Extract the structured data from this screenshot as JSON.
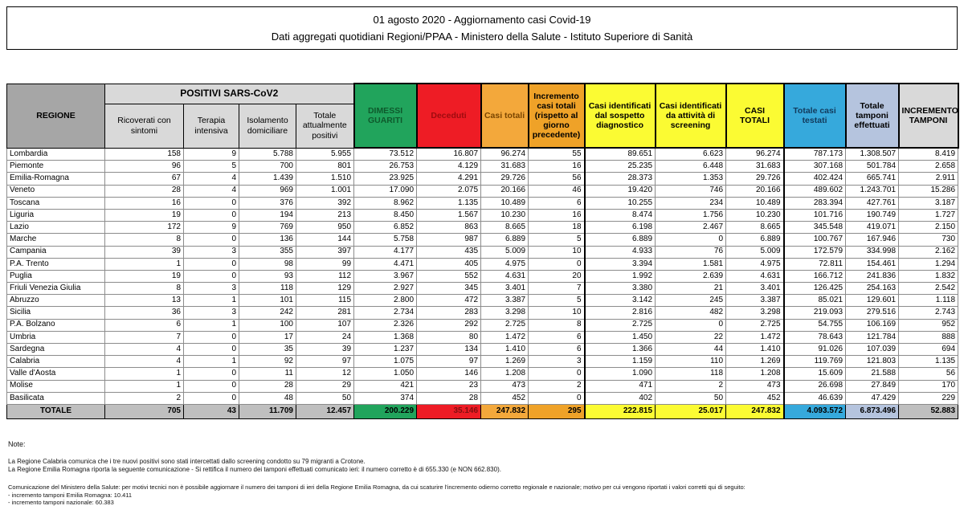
{
  "title": {
    "line1": "01 agosto 2020 - Aggiornamento casi Covid-19",
    "line2": "Dati aggregati quotidiani Regioni/PPAA - Ministero della Salute - Istituto Superiore di Sanità"
  },
  "table": {
    "header": {
      "regione": "REGIONE",
      "positivi_group": "POSITIVI SARS-CoV2",
      "sub_columns": [
        "Ricoverati con sintomi",
        "Terapia intensiva",
        "Isolamento domiciliare",
        "Totale attualmente positivi"
      ],
      "dimessi": "DIMESSI GUARITI",
      "deceduti": "Deceduti",
      "casi_totali": "Casi totali",
      "incremento_casi": "Incremento casi totali (rispetto al giorno precedente)",
      "sospetto": "Casi identificati dal sospetto diagnostico",
      "screening": "Casi identificati da attività di screening",
      "casi_totali_maiusc": "CASI TOTALI",
      "casi_testati": "Totale casi testati",
      "tamponi": "Totale tamponi effettuati",
      "incremento_tamponi": "INCREMENTO TAMPONI"
    },
    "rows": [
      {
        "regione": "Lombardia",
        "values": [
          "158",
          "9",
          "5.788",
          "5.955",
          "73.512",
          "16.807",
          "96.274",
          "55",
          "89.651",
          "6.623",
          "96.274",
          "787.173",
          "1.308.507",
          "8.419"
        ]
      },
      {
        "regione": "Piemonte",
        "values": [
          "96",
          "5",
          "700",
          "801",
          "26.753",
          "4.129",
          "31.683",
          "16",
          "25.235",
          "6.448",
          "31.683",
          "307.168",
          "501.784",
          "2.658"
        ]
      },
      {
        "regione": "Emilia-Romagna",
        "values": [
          "67",
          "4",
          "1.439",
          "1.510",
          "23.925",
          "4.291",
          "29.726",
          "56",
          "28.373",
          "1.353",
          "29.726",
          "402.424",
          "665.741",
          "2.911"
        ]
      },
      {
        "regione": "Veneto",
        "values": [
          "28",
          "4",
          "969",
          "1.001",
          "17.090",
          "2.075",
          "20.166",
          "46",
          "19.420",
          "746",
          "20.166",
          "489.602",
          "1.243.701",
          "15.286"
        ]
      },
      {
        "regione": "Toscana",
        "values": [
          "16",
          "0",
          "376",
          "392",
          "8.962",
          "1.135",
          "10.489",
          "6",
          "10.255",
          "234",
          "10.489",
          "283.394",
          "427.761",
          "3.187"
        ]
      },
      {
        "regione": "Liguria",
        "values": [
          "19",
          "0",
          "194",
          "213",
          "8.450",
          "1.567",
          "10.230",
          "16",
          "8.474",
          "1.756",
          "10.230",
          "101.716",
          "190.749",
          "1.727"
        ]
      },
      {
        "regione": "Lazio",
        "values": [
          "172",
          "9",
          "769",
          "950",
          "6.852",
          "863",
          "8.665",
          "18",
          "6.198",
          "2.467",
          "8.665",
          "345.548",
          "419.071",
          "2.150"
        ]
      },
      {
        "regione": "Marche",
        "values": [
          "8",
          "0",
          "136",
          "144",
          "5.758",
          "987",
          "6.889",
          "5",
          "6.889",
          "0",
          "6.889",
          "100.767",
          "167.946",
          "730"
        ]
      },
      {
        "regione": "Campania",
        "values": [
          "39",
          "3",
          "355",
          "397",
          "4.177",
          "435",
          "5.009",
          "10",
          "4.933",
          "76",
          "5.009",
          "172.579",
          "334.998",
          "2.162"
        ]
      },
      {
        "regione": "P.A. Trento",
        "values": [
          "1",
          "0",
          "98",
          "99",
          "4.471",
          "405",
          "4.975",
          "0",
          "3.394",
          "1.581",
          "4.975",
          "72.811",
          "154.461",
          "1.294"
        ]
      },
      {
        "regione": "Puglia",
        "values": [
          "19",
          "0",
          "93",
          "112",
          "3.967",
          "552",
          "4.631",
          "20",
          "1.992",
          "2.639",
          "4.631",
          "166.712",
          "241.836",
          "1.832"
        ]
      },
      {
        "regione": "Friuli Venezia Giulia",
        "values": [
          "8",
          "3",
          "118",
          "129",
          "2.927",
          "345",
          "3.401",
          "7",
          "3.380",
          "21",
          "3.401",
          "126.425",
          "254.163",
          "2.542"
        ]
      },
      {
        "regione": "Abruzzo",
        "values": [
          "13",
          "1",
          "101",
          "115",
          "2.800",
          "472",
          "3.387",
          "5",
          "3.142",
          "245",
          "3.387",
          "85.021",
          "129.601",
          "1.118"
        ]
      },
      {
        "regione": "Sicilia",
        "values": [
          "36",
          "3",
          "242",
          "281",
          "2.734",
          "283",
          "3.298",
          "10",
          "2.816",
          "482",
          "3.298",
          "219.093",
          "279.516",
          "2.743"
        ]
      },
      {
        "regione": "P.A. Bolzano",
        "values": [
          "6",
          "1",
          "100",
          "107",
          "2.326",
          "292",
          "2.725",
          "8",
          "2.725",
          "0",
          "2.725",
          "54.755",
          "106.169",
          "952"
        ]
      },
      {
        "regione": "Umbria",
        "values": [
          "7",
          "0",
          "17",
          "24",
          "1.368",
          "80",
          "1.472",
          "6",
          "1.450",
          "22",
          "1.472",
          "78.643",
          "121.784",
          "888"
        ]
      },
      {
        "regione": "Sardegna",
        "values": [
          "4",
          "0",
          "35",
          "39",
          "1.237",
          "134",
          "1.410",
          "6",
          "1.366",
          "44",
          "1.410",
          "91.026",
          "107.039",
          "694"
        ]
      },
      {
        "regione": "Calabria",
        "values": [
          "4",
          "1",
          "92",
          "97",
          "1.075",
          "97",
          "1.269",
          "3",
          "1.159",
          "110",
          "1.269",
          "119.769",
          "121.803",
          "1.135"
        ]
      },
      {
        "regione": "Valle d'Aosta",
        "values": [
          "1",
          "0",
          "11",
          "12",
          "1.050",
          "146",
          "1.208",
          "0",
          "1.090",
          "118",
          "1.208",
          "15.609",
          "21.588",
          "56"
        ]
      },
      {
        "regione": "Molise",
        "values": [
          "1",
          "0",
          "28",
          "29",
          "421",
          "23",
          "473",
          "2",
          "471",
          "2",
          "473",
          "26.698",
          "27.849",
          "170"
        ]
      },
      {
        "regione": "Basilicata",
        "values": [
          "2",
          "0",
          "48",
          "50",
          "374",
          "28",
          "452",
          "0",
          "402",
          "50",
          "452",
          "46.639",
          "47.429",
          "229"
        ]
      }
    ],
    "totale": {
      "regione": "TOTALE",
      "values": [
        "705",
        "43",
        "11.709",
        "12.457",
        "200.229",
        "35.146",
        "247.832",
        "295",
        "222.815",
        "25.017",
        "247.832",
        "4.093.572",
        "6.873.496",
        "52.883"
      ]
    }
  },
  "notes": {
    "label": "Note:",
    "calabria": "La Regione Calabria comunica che i tre nuovi positivi sono stati intercettati dallo screening condotto su 79 migranti a Crotone.",
    "emilia": "La Regione Emilia Romagna riporta la seguente comunicazione - Si rettifica il numero dei tamponi effettuati comunicato ieri: il numero corretto è di 655.330 (e NON 662.830).",
    "ministero": "Comunicazione del Ministero della Salute: per motivi tecnici non è possibile aggiornare il numero dei tamponi di ieri della Regione Emilia Romagna, da cui scaturire l'incremento odierno corretto regionale e nazionale; motivo per cui vengono riportati i valori corretti qui di seguito:",
    "incremento_er": "- incremento tamponi Emilia Romagna: 10.411",
    "incremento_naz": "- incremento tamponi nazionale: 60.383"
  },
  "colors": {
    "green": "#21A45C",
    "red": "#EE1C25",
    "orange": "#F3A83B",
    "orange_dark": "#EFA228",
    "yellow": "#FBFB33",
    "blue": "#36A9DC",
    "light_blue": "#B5C4DE",
    "header_gray": "#A6A6A6",
    "light_gray": "#D9D9D9",
    "totale_gray": "#BFBFBF"
  }
}
